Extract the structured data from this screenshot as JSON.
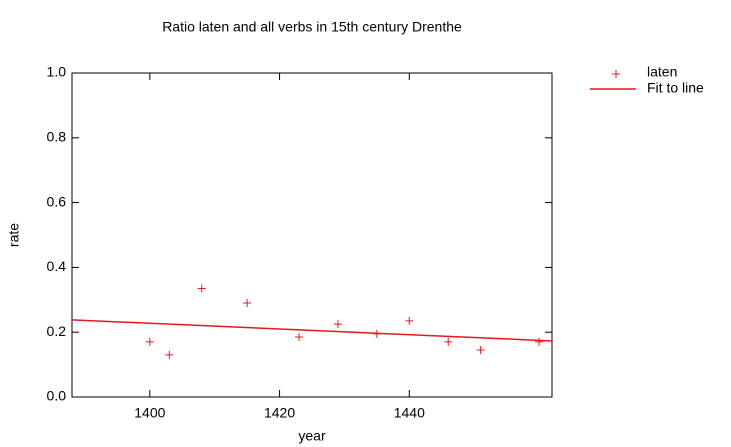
{
  "chart_data": {
    "type": "scatter",
    "title": "Ratio laten and all verbs in 15th century Drenthe",
    "xlabel": "year",
    "ylabel": "rate",
    "series": [
      {
        "name": "laten",
        "color": "#e31a1c",
        "kind": "points",
        "x": [
          1400,
          1403,
          1408,
          1415,
          1423,
          1429,
          1435,
          1440,
          1446,
          1451,
          1460
        ],
        "values": [
          0.17,
          0.13,
          0.335,
          0.29,
          0.185,
          0.225,
          0.195,
          0.235,
          0.17,
          0.145,
          0.17
        ]
      },
      {
        "name": "Fit to line",
        "color": "#e31a1c",
        "kind": "line",
        "x": [
          1388,
          1462
        ],
        "values": [
          0.238,
          0.173
        ]
      }
    ],
    "xlim": [
      1388,
      1462
    ],
    "xticks": [
      1400,
      1420,
      1440
    ],
    "ylim": [
      0,
      1
    ],
    "yticks": [
      {
        "value": 0,
        "label": "0.0"
      },
      {
        "value": 0.2,
        "label": "0.2"
      },
      {
        "value": 0.4,
        "label": "0.4"
      },
      {
        "value": 0.6,
        "label": "0.6"
      },
      {
        "value": 0.8,
        "label": "0.8"
      },
      {
        "value": 1,
        "label": "1.0"
      }
    ],
    "legend": "outside-right"
  }
}
